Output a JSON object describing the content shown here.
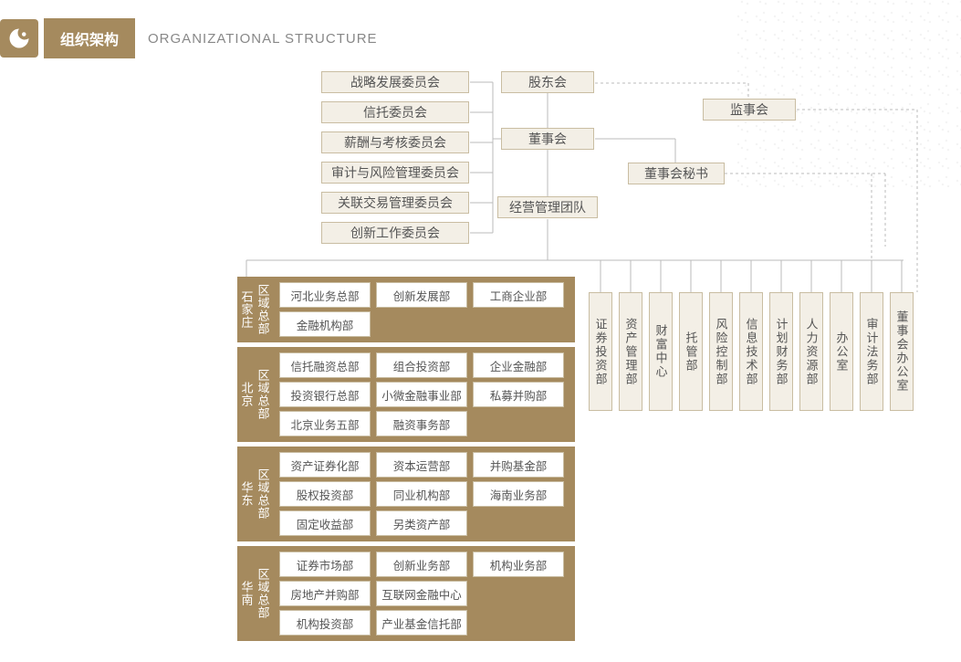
{
  "header": {
    "title_cn": "组织架构",
    "title_en": "ORGANIZATIONAL STRUCTURE"
  },
  "colors": {
    "brand": "#a58a5e",
    "box_bg": "#f3efe6",
    "box_border": "#c9bda2",
    "line": "#bbb",
    "text": "#555"
  },
  "top": {
    "shareholders": "股东会",
    "board": "董事会",
    "supervisors": "监事会",
    "secretary": "董事会秘书",
    "mgmt": "经营管理团队",
    "committees": [
      "战略发展委员会",
      "信托委员会",
      "薪酬与考核委员会",
      "审计与风险管理委员会",
      "关联交易管理委员会",
      "创新工作委员会"
    ]
  },
  "vertical_depts": [
    "证券投资部",
    "资产管理部",
    "财富中心",
    "托管部",
    "风险控制部",
    "信息技术部",
    "计划财务部",
    "人力资源部",
    "办公室",
    "审计法务部",
    "董事会办公室"
  ],
  "regions": [
    {
      "name": "石家庄",
      "label": "区域总部",
      "rows": [
        [
          "河北业务总部",
          "创新发展部",
          "工商企业部"
        ],
        [
          "金融机构部"
        ]
      ]
    },
    {
      "name": "北京",
      "label": "区域总部",
      "rows": [
        [
          "信托融资总部",
          "组合投资部",
          "企业金融部"
        ],
        [
          "投资银行总部",
          "小微金融事业部",
          "私募并购部"
        ],
        [
          "北京业务五部",
          "融资事务部"
        ]
      ]
    },
    {
      "name": "华东",
      "label": "区域总部",
      "rows": [
        [
          "资产证券化部",
          "资本运营部",
          "并购基金部"
        ],
        [
          "股权投资部",
          "同业机构部",
          "海南业务部"
        ],
        [
          "固定收益部",
          "另类资产部"
        ]
      ]
    },
    {
      "name": "华南",
      "label": "区域总部",
      "rows": [
        [
          "证券市场部",
          "创新业务部",
          "机构业务部"
        ],
        [
          "房地产并购部",
          "互联网金融中心"
        ],
        [
          "机构投资部",
          "产业基金信托部"
        ]
      ]
    }
  ]
}
